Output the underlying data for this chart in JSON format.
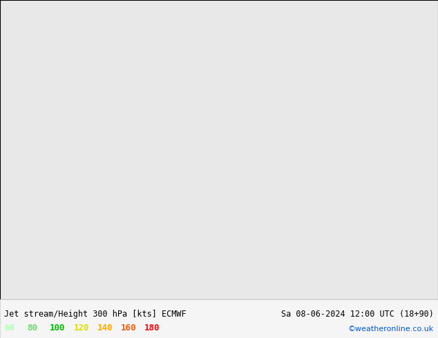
{
  "title_left": "Jet stream/Height 300 hPa [kts] ECMWF",
  "title_right": "Sa 08-06-2024 12:00 UTC (18+90)",
  "credit": "©weatheronline.co.uk",
  "legend_values": [
    "60",
    "80",
    "100",
    "120",
    "140",
    "160",
    "180"
  ],
  "legend_colors": [
    "#b3ffb3",
    "#66dd66",
    "#00bb00",
    "#dddd00",
    "#ffaa00",
    "#ff5500",
    "#ff0000"
  ],
  "figsize": [
    6.34,
    4.9
  ],
  "dpi": 100,
  "text_color": "#000000",
  "title_fontsize": 8.5,
  "legend_fontsize": 9,
  "credit_color": "#0055cc",
  "map_background": "#e8e8e8",
  "ocean_color": "#e0e8e0",
  "land_color_light": "#c8e8b0",
  "land_color_dark": "#b8d8a0",
  "contour_lw": 1.4,
  "lon_min": -55,
  "lon_max": 50,
  "lat_min": 30,
  "lat_max": 80
}
